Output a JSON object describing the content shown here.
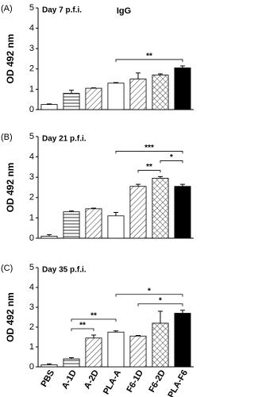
{
  "chart_data": [
    {
      "type": "bar",
      "panel_label": "(A)",
      "title": "IgG",
      "subtitle": "Day 7 p.f.i.",
      "y_label": "OD 492 nm",
      "categories": [
        "PBS",
        "A-1D",
        "A-2D",
        "PLA-A",
        "F6-1D",
        "F6-2D",
        "PLA-F6"
      ],
      "values": [
        0.25,
        0.8,
        1.05,
        1.3,
        1.5,
        1.7,
        2.05
      ],
      "errors": [
        0.03,
        0.15,
        0.02,
        0.03,
        0.3,
        0.06,
        0.1
      ],
      "patterns": [
        "none",
        "horizontal",
        "diagonal",
        "none",
        "diagonal",
        "crosshatch",
        "solid"
      ],
      "ylim": [
        0,
        5
      ],
      "yticks": [
        0,
        1,
        2,
        3,
        4,
        5
      ],
      "significance": [
        {
          "from": "PLA-A",
          "to": "PLA-F6",
          "label": "**"
        }
      ]
    },
    {
      "type": "bar",
      "panel_label": "(B)",
      "subtitle": "Day 21 p.f.i.",
      "y_label": "OD 492 nm",
      "categories": [
        "PBS",
        "A-1D",
        "A-2D",
        "PLA-A",
        "F6-1D",
        "F6-2D",
        "PLA-F6"
      ],
      "values": [
        0.1,
        1.3,
        1.45,
        1.1,
        2.55,
        2.95,
        2.55
      ],
      "errors": [
        0.07,
        0.04,
        0.03,
        0.17,
        0.1,
        0.08,
        0.1
      ],
      "patterns": [
        "none",
        "horizontal",
        "diagonal",
        "none",
        "diagonal",
        "crosshatch",
        "solid"
      ],
      "ylim": [
        0,
        5
      ],
      "yticks": [
        0,
        1,
        2,
        3,
        4,
        5
      ],
      "significance": [
        {
          "from": "F6-1D",
          "to": "F6-2D",
          "label": "**"
        },
        {
          "from": "F6-2D",
          "to": "PLA-F6",
          "label": "*"
        },
        {
          "from": "PLA-A",
          "to": "PLA-F6",
          "label": "***"
        }
      ]
    },
    {
      "type": "bar",
      "panel_label": "(C)",
      "subtitle": "Day 35 p.f.i.",
      "y_label": "OD 492 nm",
      "categories": [
        "PBS",
        "A-1D",
        "A-2D",
        "PLA-A",
        "F6-1D",
        "F6-2D",
        "PLA-F6"
      ],
      "values": [
        0.1,
        0.4,
        1.45,
        1.75,
        1.55,
        2.2,
        2.7
      ],
      "errors": [
        0.05,
        0.06,
        0.15,
        0.06,
        0.03,
        0.6,
        0.15
      ],
      "patterns": [
        "none",
        "horizontal",
        "diagonal",
        "none",
        "diagonal",
        "crosshatch",
        "solid"
      ],
      "ylim": [
        0,
        5
      ],
      "yticks": [
        0,
        1,
        2,
        3,
        4,
        5
      ],
      "significance": [
        {
          "from": "A-1D",
          "to": "A-2D",
          "label": "**"
        },
        {
          "from": "F6-1D",
          "to": "PLA-F6",
          "label": "*"
        },
        {
          "from": "A-1D",
          "to": "PLA-A",
          "label": "**"
        },
        {
          "from": "PLA-A",
          "to": "PLA-F6",
          "label": "*"
        }
      ]
    }
  ]
}
